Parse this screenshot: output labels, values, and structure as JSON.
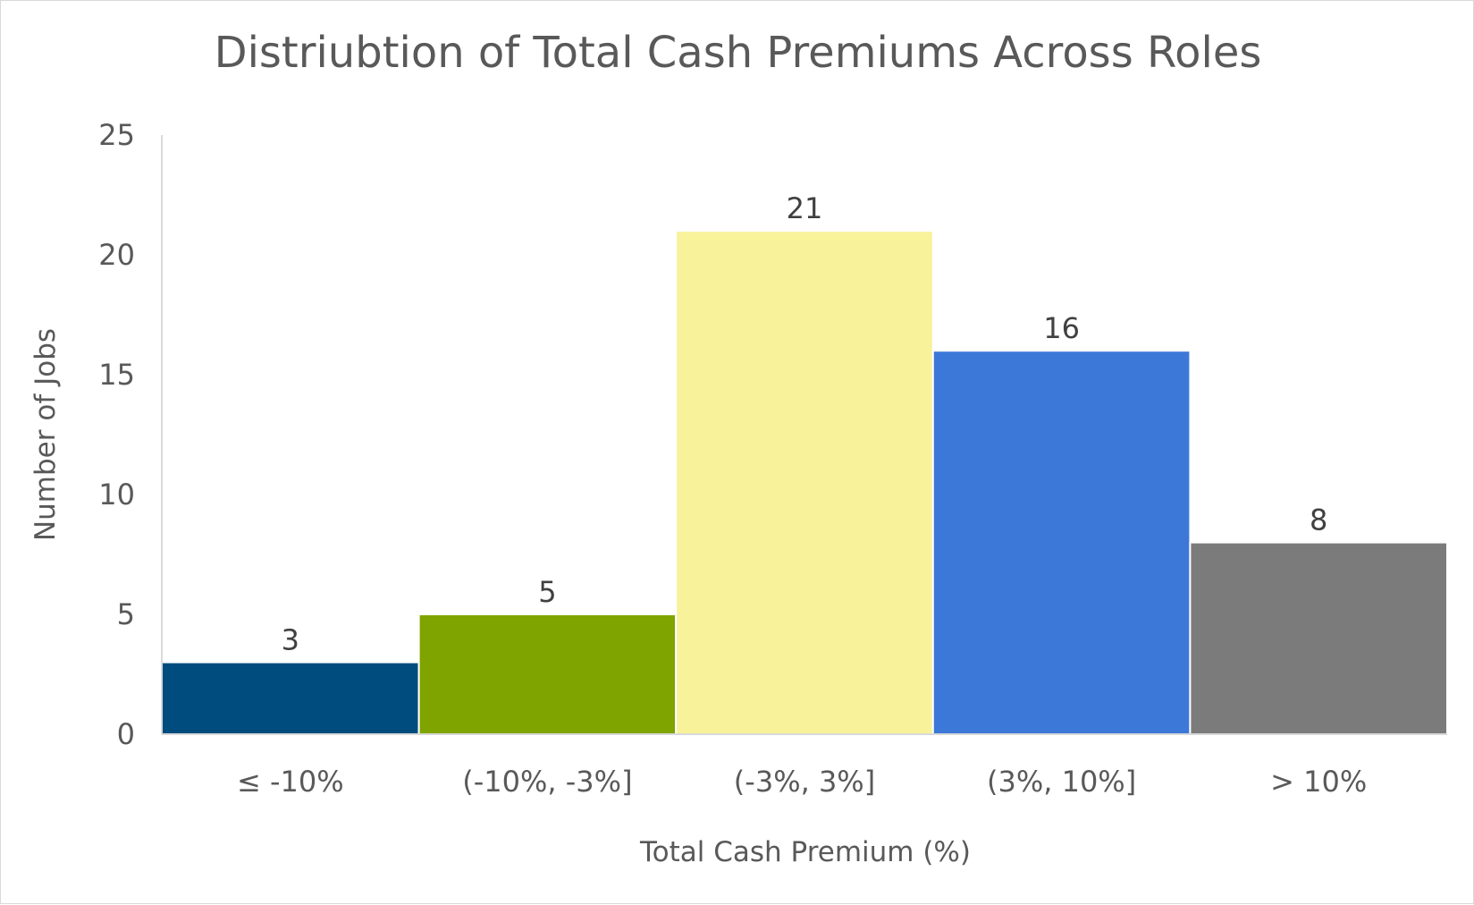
{
  "chart_data": {
    "type": "bar",
    "title": "Distriubtion of Total Cash Premiums Across Roles",
    "xlabel": "Total Cash Premium (%)",
    "ylabel": "Number of Jobs",
    "categories": [
      "≤ -10%",
      "(-10%, -3%]",
      "(-3%, 3%]",
      "(3%, 10%]",
      "> 10%"
    ],
    "values": [
      3,
      5,
      21,
      16,
      8
    ],
    "colors": [
      "#004C7F",
      "#7FA400",
      "#F8F29B",
      "#3C78D8",
      "#7B7B7B"
    ],
    "ylim": [
      0,
      25
    ],
    "yticks": [
      0,
      5,
      10,
      15,
      20,
      25
    ],
    "grid": false,
    "legend": "none",
    "data_labels": true
  }
}
